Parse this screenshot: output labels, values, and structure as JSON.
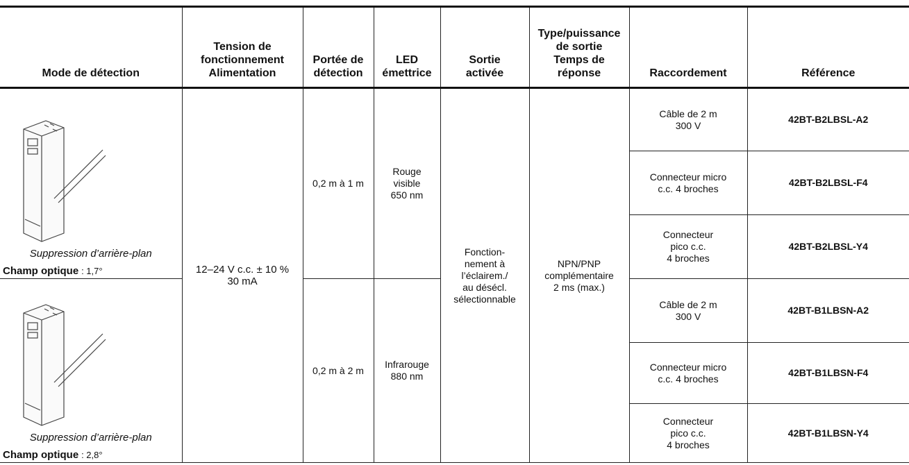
{
  "table": {
    "header": [
      [
        "Mode de détection"
      ],
      [
        "Tension de",
        "fonctionnement",
        "Alimentation"
      ],
      [
        "Portée de",
        "détection"
      ],
      [
        "LED",
        "émettrice"
      ],
      [
        "Sortie",
        "activée"
      ],
      [
        "Type/puissance",
        "de sortie",
        "Temps de",
        "réponse"
      ],
      [
        "Raccordement"
      ],
      [
        "Référence"
      ]
    ],
    "supply": [
      "12–24 V c.c. ± 10 %",
      "30 mA"
    ],
    "output": [
      "Fonction-",
      "nement à",
      "l’éclairem./",
      "au désécl.",
      "sélectionnable"
    ],
    "output_type": [
      "NPN/PNP",
      "complémentaire",
      "2 ms (max.)"
    ],
    "groups": [
      {
        "mode": "Suppression d’arrière-plan",
        "field_label": "Champ optique",
        "field_value": ": 1,7°",
        "range": "0,2 m à 1 m",
        "led": [
          "Rouge",
          "visible",
          "650 nm"
        ],
        "rows": [
          {
            "connection": [
              "Câble de 2 m",
              "300 V"
            ],
            "reference": "42BT-B2LBSL-A2"
          },
          {
            "connection": [
              "Connecteur micro",
              "c.c. 4 broches"
            ],
            "reference": "42BT-B2LBSL-F4"
          },
          {
            "connection": [
              "Connecteur",
              "pico c.c.",
              "4 broches"
            ],
            "reference": "42BT-B2LBSL-Y4"
          }
        ]
      },
      {
        "mode": "Suppression d’arrière-plan",
        "field_label": "Champ optique",
        "field_value": ": 2,8°",
        "range": "0,2 m à 2 m",
        "led": [
          "Infrarouge",
          "880 nm"
        ],
        "rows": [
          {
            "connection": [
              "Câble de 2 m",
              "300 V"
            ],
            "reference": "42BT-B1LBSN-A2"
          },
          {
            "connection": [
              "Connecteur micro",
              "c.c. 4 broches"
            ],
            "reference": "42BT-B1LBSN-F4"
          },
          {
            "connection": [
              "Connecteur",
              "pico c.c.",
              "4 broches"
            ],
            "reference": "42BT-B1LBSN-Y4"
          }
        ]
      }
    ]
  }
}
